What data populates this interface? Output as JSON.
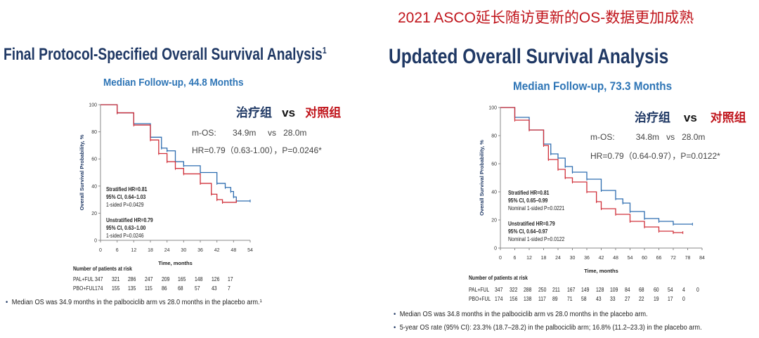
{
  "banner": "2021 ASCO延长随访更新的OS-数据更加成熟",
  "colors": {
    "pal": "#2e6db0",
    "pbo": "#d0303a",
    "title": "#1f3864",
    "accent": "#c0141b"
  },
  "legend": {
    "treat": "治疗组",
    "vs": "vs",
    "control": "对照组"
  },
  "chart_data": [
    {
      "type": "line",
      "title": "Final Protocol-Specified Overall Survival Analysis",
      "title_sup": "1",
      "subtitle": "Median Follow-up, 44.8 Months",
      "xlabel": "Time, months",
      "ylabel": "Overall Survival Probability, %",
      "xlim": [
        0,
        54
      ],
      "ylim": [
        0,
        100
      ],
      "xticks": [
        "0",
        "6",
        "12",
        "18",
        "24",
        "30",
        "36",
        "42",
        "48",
        "54"
      ],
      "yticks": [
        "0",
        "20",
        "40",
        "60",
        "80",
        "100"
      ],
      "series": [
        {
          "name": "PAL+FUL",
          "x": [
            0,
            6,
            12,
            18,
            22,
            24,
            27,
            30,
            36,
            42,
            45,
            47,
            48,
            49,
            54
          ],
          "y": [
            100,
            94,
            86,
            76,
            68,
            66,
            58,
            55,
            50,
            42,
            39,
            36,
            32,
            29,
            29
          ]
        },
        {
          "name": "PBO+FUL",
          "x": [
            0,
            6,
            12,
            18,
            21,
            24,
            27,
            30,
            36,
            40,
            42,
            44,
            49
          ],
          "y": [
            100,
            94,
            85,
            74,
            64,
            58,
            53,
            49,
            42,
            34,
            30,
            28,
            29
          ]
        }
      ],
      "mos": {
        "label": "m-OS:",
        "treat": "34.9m",
        "vs": "vs",
        "control": "28.0m"
      },
      "hr": "HR=0.79（0.63-1.00），P=0.0246*",
      "annot": {
        "s1": "Stratified HR=0.81",
        "s2": "95% CI, 0.64–1.03",
        "s3": "1-sided P=0.0429",
        "u1": "Unstratified HR=0.79",
        "u2": "95% CI, 0.63–1.00",
        "u3": "1-sided P=0.0246"
      },
      "risk": {
        "header": "Number of patients at risk",
        "rows": [
          {
            "label": "PAL+FUL",
            "values": [
              "347",
              "321",
              "286",
              "247",
              "209",
              "165",
              "148",
              "126",
              "17"
            ]
          },
          {
            "label": "PBO+FUL",
            "values": [
              "174",
              "155",
              "135",
              "115",
              "86",
              "68",
              "57",
              "43",
              "7"
            ]
          }
        ]
      },
      "bullets": [
        "Median OS was 34.9 months in the palbociclib arm vs 28.0 months in the placebo arm.¹"
      ]
    },
    {
      "type": "line",
      "title": "Updated Overall Survival Analysis",
      "subtitle": "Median Follow-up, 73.3 Months",
      "xlabel": "Time, months",
      "ylabel": "Overall Survival Probability, %",
      "xlim": [
        0,
        84
      ],
      "ylim": [
        0,
        100
      ],
      "xticks": [
        "0",
        "6",
        "12",
        "18",
        "24",
        "30",
        "36",
        "42",
        "48",
        "54",
        "60",
        "66",
        "72",
        "78",
        "84"
      ],
      "yticks": [
        "0",
        "20",
        "40",
        "60",
        "80",
        "100"
      ],
      "series": [
        {
          "name": "PAL+FUL",
          "x": [
            0,
            6,
            12,
            18,
            21,
            24,
            27,
            30,
            36,
            42,
            48,
            51,
            54,
            60,
            66,
            72,
            80
          ],
          "y": [
            100,
            93,
            84,
            74,
            67,
            64,
            58,
            54,
            49,
            41,
            35,
            32,
            26,
            21,
            19,
            17,
            17
          ]
        },
        {
          "name": "PBO+FUL",
          "x": [
            0,
            6,
            12,
            18,
            20,
            24,
            27,
            30,
            36,
            40,
            42,
            48,
            54,
            60,
            66,
            72,
            76
          ],
          "y": [
            100,
            91,
            84,
            73,
            63,
            56,
            50,
            47,
            40,
            33,
            28,
            24,
            19,
            15,
            12,
            11,
            11
          ]
        }
      ],
      "mos": {
        "label": "m-OS:",
        "treat": "34.8m",
        "vs": "vs",
        "control": "28.0m"
      },
      "hr": "HR=0.79（0.64-0.97），P=0.0122*",
      "annot": {
        "s1": "Stratified HR=0.81",
        "s2": "95% CI, 0.65–0.99",
        "s3": "Nominal 1-sided P=0.0221",
        "u1": "Unstratified HR=0.79",
        "u2": "95% CI, 0.64–0.97",
        "u3": "Nominal 1-sided P=0.0122"
      },
      "risk": {
        "header": "Number of patients at risk",
        "rows": [
          {
            "label": "PAL+FUL",
            "values": [
              "347",
              "322",
              "288",
              "250",
              "211",
              "167",
              "149",
              "128",
              "109",
              "84",
              "68",
              "60",
              "54",
              "4",
              "0"
            ]
          },
          {
            "label": "PBO+FUL",
            "values": [
              "174",
              "156",
              "138",
              "117",
              "89",
              "71",
              "58",
              "43",
              "33",
              "27",
              "22",
              "19",
              "17",
              "0"
            ]
          }
        ]
      },
      "bullets": [
        "Median OS was 34.8 months in the palbociclib arm vs 28.0 months in the placebo arm.",
        "5-year OS rate (95% CI): 23.3% (18.7–28.2) in the palbociclib arm; 16.8% (11.2–23.3) in the placebo arm."
      ]
    }
  ]
}
